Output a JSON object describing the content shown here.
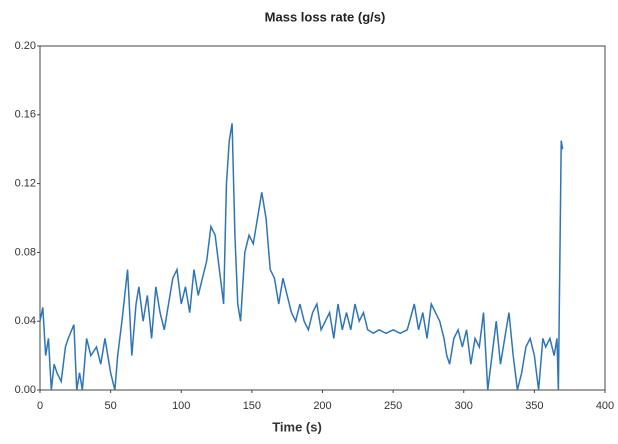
{
  "chart_data": {
    "type": "line",
    "title": "Mass loss rate (g/s)",
    "xlabel": "Time (s)",
    "x": [
      0,
      2,
      4,
      6,
      8,
      10,
      12,
      15,
      18,
      20,
      24,
      26,
      28,
      30,
      33,
      36,
      40,
      43,
      46,
      50,
      53,
      55,
      58,
      62,
      65,
      68,
      70,
      73,
      76,
      79,
      82,
      85,
      88,
      91,
      94,
      97,
      100,
      103,
      106,
      109,
      112,
      115,
      118,
      121,
      124,
      127,
      130,
      132,
      134,
      136,
      138,
      140,
      142,
      145,
      148,
      151,
      154,
      157,
      160,
      163,
      166,
      169,
      172,
      175,
      178,
      181,
      184,
      187,
      190,
      193,
      196,
      199,
      202,
      205,
      208,
      211,
      214,
      217,
      220,
      223,
      226,
      229,
      232,
      236,
      240,
      245,
      250,
      255,
      260,
      265,
      268,
      271,
      274,
      277,
      280,
      283,
      286,
      288,
      290,
      293,
      296,
      299,
      302,
      305,
      308,
      311,
      314,
      317,
      320,
      323,
      326,
      329,
      332,
      335,
      338,
      341,
      344,
      347,
      350,
      353,
      356,
      358,
      361,
      364,
      366,
      367,
      369,
      370
    ],
    "series": [
      {
        "name": "Mass loss rate",
        "color": "#2e75b6",
        "values": [
          0.04,
          0.048,
          0.02,
          0.03,
          0.0,
          0.015,
          0.01,
          0.005,
          0.025,
          0.03,
          0.038,
          0.0,
          0.01,
          0.0,
          0.03,
          0.02,
          0.025,
          0.015,
          0.03,
          0.01,
          0.0,
          0.02,
          0.04,
          0.07,
          0.02,
          0.05,
          0.06,
          0.04,
          0.055,
          0.03,
          0.06,
          0.045,
          0.035,
          0.05,
          0.065,
          0.07,
          0.05,
          0.06,
          0.045,
          0.07,
          0.055,
          0.065,
          0.075,
          0.095,
          0.09,
          0.07,
          0.05,
          0.12,
          0.145,
          0.155,
          0.09,
          0.05,
          0.04,
          0.08,
          0.09,
          0.085,
          0.1,
          0.115,
          0.1,
          0.07,
          0.065,
          0.05,
          0.065,
          0.055,
          0.045,
          0.04,
          0.05,
          0.04,
          0.035,
          0.045,
          0.05,
          0.035,
          0.04,
          0.045,
          0.03,
          0.05,
          0.035,
          0.045,
          0.035,
          0.05,
          0.04,
          0.045,
          0.035,
          0.033,
          0.035,
          0.033,
          0.035,
          0.033,
          0.035,
          0.05,
          0.035,
          0.045,
          0.03,
          0.05,
          0.045,
          0.04,
          0.03,
          0.02,
          0.015,
          0.03,
          0.035,
          0.025,
          0.035,
          0.015,
          0.03,
          0.025,
          0.045,
          0.0,
          0.02,
          0.04,
          0.015,
          0.03,
          0.045,
          0.02,
          0.0,
          0.01,
          0.025,
          0.03,
          0.02,
          0.0,
          0.03,
          0.025,
          0.03,
          0.02,
          0.03,
          0.0,
          0.145,
          0.14
        ]
      }
    ],
    "xlim": [
      0,
      400
    ],
    "xticks": [
      0,
      50,
      100,
      150,
      200,
      250,
      300,
      350,
      400
    ],
    "ylim": [
      0,
      0.2
    ],
    "yticks": [
      {
        "value": 0,
        "label": "0.00"
      },
      0.04,
      0.08,
      0.12,
      0.16,
      {
        "value": 0.2,
        "label": "0.20"
      }
    ]
  }
}
